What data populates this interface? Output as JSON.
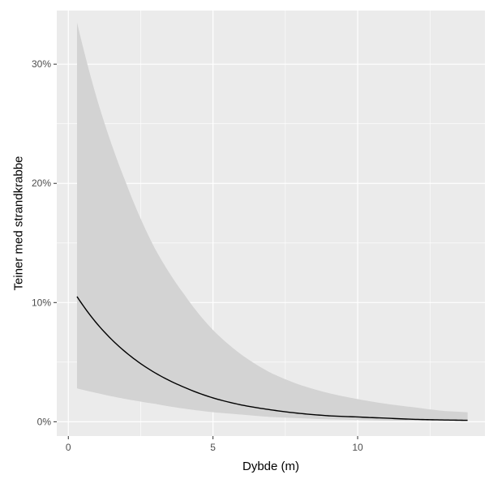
{
  "chart_data": {
    "type": "line",
    "title": "",
    "xlabel": "Dybde (m)",
    "ylabel": "Teiner med strandkrabbe",
    "xlim": [
      -0.4,
      14.4
    ],
    "ylim": [
      -0.012,
      0.345
    ],
    "x_ticks": [
      {
        "value": 0,
        "label": "0"
      },
      {
        "value": 5,
        "label": "5"
      },
      {
        "value": 10,
        "label": "10"
      }
    ],
    "x_minor": [
      2.5,
      7.5,
      12.5
    ],
    "y_ticks": [
      {
        "value": 0.0,
        "label": "0%"
      },
      {
        "value": 0.1,
        "label": "10%"
      },
      {
        "value": 0.2,
        "label": "20%"
      },
      {
        "value": 0.3,
        "label": "30%"
      }
    ],
    "y_minor": [
      0.05,
      0.15,
      0.25
    ],
    "grid": true,
    "legend": "none",
    "colors": {
      "panel": "#ebebeb",
      "grid": "#ffffff",
      "ribbon": "#d3d3d3",
      "line": "#000000"
    },
    "series": [
      {
        "x": [
          0.3,
          1.0,
          2.0,
          3.0,
          4.0,
          5.0,
          6.0,
          7.0,
          8.0,
          9.0,
          10.0,
          11.0,
          12.0,
          13.0,
          13.8
        ],
        "y": [
          0.105,
          0.082,
          0.058,
          0.041,
          0.029,
          0.02,
          0.014,
          0.01,
          0.007,
          0.005,
          0.004,
          0.003,
          0.002,
          0.0015,
          0.0012
        ],
        "lower": [
          0.028,
          0.024,
          0.019,
          0.015,
          0.011,
          0.008,
          0.006,
          0.004,
          0.003,
          0.002,
          0.0015,
          0.001,
          0.0008,
          0.0005,
          0.0004
        ],
        "upper": [
          0.335,
          0.27,
          0.2,
          0.145,
          0.107,
          0.077,
          0.056,
          0.041,
          0.031,
          0.024,
          0.019,
          0.015,
          0.012,
          0.009,
          0.008
        ]
      }
    ]
  }
}
